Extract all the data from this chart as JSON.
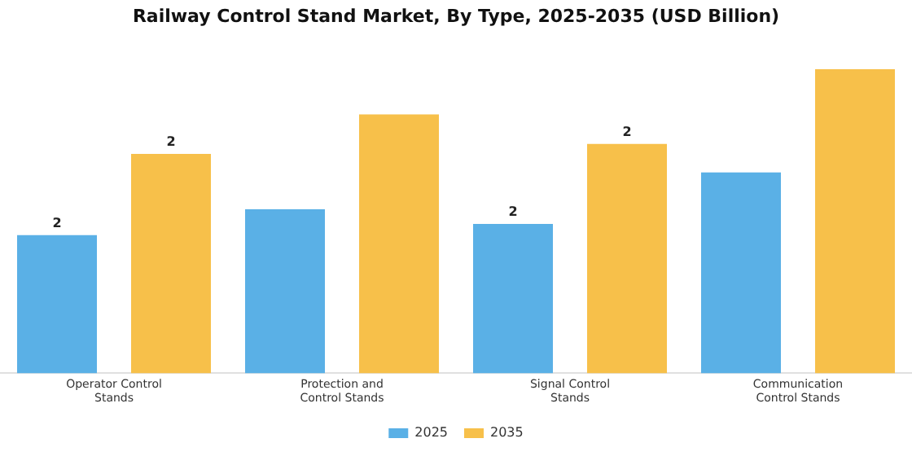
{
  "chart_data": {
    "type": "bar",
    "title": "Railway Control Stand Market, By Type, 2025-2035 (USD Billion)",
    "categories": [
      "Operator Control Stands",
      "Protection and Control Stands",
      "Signal Control Stands",
      "Communication Control Stands"
    ],
    "series": [
      {
        "name": "2025",
        "color": "#5ab0e6",
        "values": [
          1.5,
          1.78,
          1.62,
          2.18
        ],
        "value_labels": [
          "2",
          null,
          "2",
          null
        ]
      },
      {
        "name": "2035",
        "color": "#f7c04a",
        "values": [
          2.38,
          2.81,
          2.49,
          3.3
        ],
        "value_labels": [
          "2",
          null,
          "2",
          null
        ]
      }
    ],
    "legend": "bottom",
    "grid": false
  }
}
